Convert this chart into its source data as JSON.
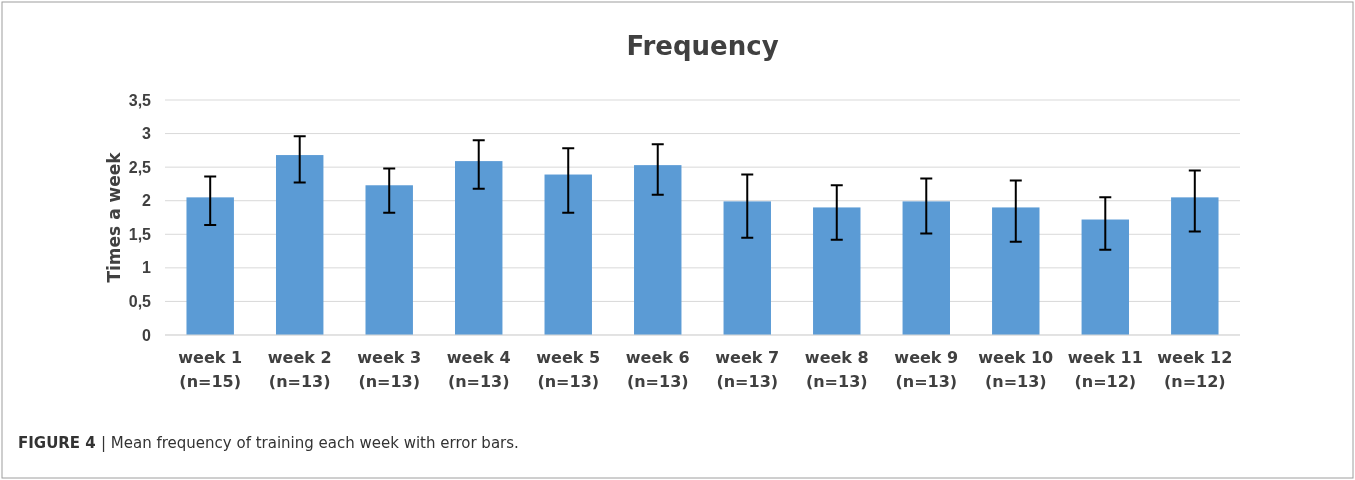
{
  "chart_data": {
    "type": "bar",
    "title": "Frequency",
    "ylabel": "Times a week",
    "categories": [
      "week 1\n(n=15)",
      "week 2\n(n=13)",
      "week 3\n(n=13)",
      "week 4\n(n=13)",
      "week 5\n(n=13)",
      "week 6\n(n=13)",
      "week 7\n(n=13)",
      "week 8\n(n=13)",
      "week 9\n(n=13)",
      "week 10\n(n=13)",
      "week 11\n(n=12)",
      "week 12\n(n=12)"
    ],
    "values": [
      2.05,
      2.68,
      2.23,
      2.59,
      2.39,
      2.53,
      1.99,
      1.9,
      1.99,
      1.9,
      1.72,
      2.05
    ],
    "errors": [
      [
        1.64,
        2.36
      ],
      [
        2.27,
        2.96
      ],
      [
        1.82,
        2.48
      ],
      [
        2.18,
        2.9
      ],
      [
        1.82,
        2.78
      ],
      [
        2.09,
        2.84
      ],
      [
        1.45,
        2.39
      ],
      [
        1.42,
        2.23
      ],
      [
        1.51,
        2.33
      ],
      [
        1.39,
        2.3
      ],
      [
        1.27,
        2.05
      ],
      [
        1.54,
        2.45
      ]
    ],
    "color": "#5b9bd5",
    "ylim": [
      0,
      3.5
    ],
    "yticks": [
      0,
      {
        "value": 0.5,
        "label": "0,5"
      },
      1,
      {
        "value": 1.5,
        "label": "1,5"
      },
      2,
      {
        "value": 2.5,
        "label": "2,5"
      },
      3,
      {
        "value": 3.5,
        "label": "3,5"
      }
    ],
    "grid": "y",
    "annotations": [
      "FIGURE 4 | Mean frequency of training each week with error bars."
    ]
  }
}
